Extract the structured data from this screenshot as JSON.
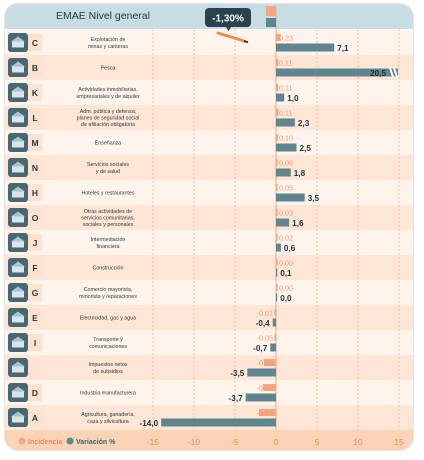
{
  "chart_data": {
    "type": "bar",
    "title": "EMAE Nivel general",
    "headline_value": "-1,30%",
    "colors": {
      "incidencia": "#f4a882",
      "variacion": "#5f8590",
      "row_light": "#fff4ec",
      "row_dark": "#fde6d6",
      "axis_band": "#fbd4b8",
      "header_band": "#c8dce3",
      "icon_bg": "#476872",
      "letter_bg": "#fde2cf",
      "letter_color": "#1f3d48",
      "headline_bg": "#29424d"
    },
    "categories": [
      {
        "code": "C",
        "label": "Explotación de\nminas y canteras",
        "incidencia": "0,23",
        "variacion": "7,1",
        "icon": "mining-icon"
      },
      {
        "code": "B",
        "label": "Pesca",
        "incidencia": "0,11",
        "variacion": "20,5",
        "icon": "fishing-icon"
      },
      {
        "code": "K",
        "label": "Actividades inmobiliarias,\nempresariales y de alquiler",
        "incidencia": "0,11",
        "variacion": "1,0",
        "icon": "real-estate-icon"
      },
      {
        "code": "L",
        "label": "Adm. pública y defensa;\nplanes de seguridad social\nde afiliación obligatoria",
        "incidencia": "0,11",
        "variacion": "2,3",
        "icon": "government-icon"
      },
      {
        "code": "M",
        "label": "Enseñanza",
        "incidencia": "0,10",
        "variacion": "2,5",
        "icon": "education-icon"
      },
      {
        "code": "N",
        "label": "Servicios sociales\ny de salud",
        "incidencia": "0,06",
        "variacion": "1,8",
        "icon": "health-icon"
      },
      {
        "code": "H",
        "label": "Hoteles y restaurantes",
        "incidencia": "0,05",
        "variacion": "3,5",
        "icon": "hotel-icon"
      },
      {
        "code": "O",
        "label": "Otras actividades de\nservicios comunitarias,\nsociales y personales",
        "incidencia": "0,03",
        "variacion": "1,6",
        "icon": "community-icon"
      },
      {
        "code": "J",
        "label": "Intermediación\nfinanciera",
        "incidencia": "0,02",
        "variacion": "0,6",
        "icon": "bank-icon"
      },
      {
        "code": "F",
        "label": "Construcción",
        "incidencia": "0,00",
        "variacion": "0,1",
        "icon": "construction-icon"
      },
      {
        "code": "G",
        "label": "Comercio mayorista,\nminorista y reparaciones",
        "incidencia": "0,00",
        "variacion": "0,0",
        "icon": "commerce-icon"
      },
      {
        "code": "E",
        "label": "Electricidad, gas y agua",
        "incidencia": "-0,01",
        "variacion": "-0,4",
        "icon": "utilities-icon"
      },
      {
        "code": "I",
        "label": "Transporte y\ncomunicaciones",
        "incidencia": "-0,05",
        "variacion": "-0,7",
        "icon": "transport-icon"
      },
      {
        "code": "",
        "label": "Impuestos netos\nde subsidios",
        "incidencia": "-0,59",
        "variacion": "-3,5",
        "icon": "taxes-icon"
      },
      {
        "code": "D",
        "label": "Industria manufacturera",
        "incidencia": "-0,63",
        "variacion": "-3,7",
        "icon": "industry-icon"
      },
      {
        "code": "A",
        "label": "Agricultura, ganadería,\ncaza y silvicultura",
        "incidencia": "-0,83",
        "variacion": "-14,0",
        "icon": "agriculture-icon"
      }
    ],
    "incidencia": [
      0.23,
      0.11,
      0.11,
      0.11,
      0.1,
      0.06,
      0.05,
      0.03,
      0.02,
      0.0,
      0.0,
      -0.01,
      -0.05,
      -0.59,
      -0.63,
      -0.83
    ],
    "variacion": [
      7.1,
      20.5,
      1.0,
      2.3,
      2.5,
      1.8,
      3.5,
      1.6,
      0.6,
      0.1,
      0.0,
      -0.4,
      -0.7,
      -3.5,
      -3.7,
      -14.0
    ],
    "headline": {
      "incidencia": -1.3,
      "variacion": 0
    },
    "x_axis": {
      "ticks": [
        -15,
        -10,
        -5,
        0,
        5,
        10,
        15
      ],
      "tick_labels": [
        "-15",
        "-10",
        "-5",
        "0",
        "5",
        "10",
        "15"
      ],
      "range": [
        -17.5,
        15.5
      ]
    },
    "axis_break": {
      "series": "variacion",
      "category": "B",
      "note": "bar for Pesca is truncated"
    },
    "legend": {
      "position": "bottom-left",
      "items": [
        {
          "name": "Incidencia",
          "color": "#f4a882"
        },
        {
          "name": "Variación %",
          "color": "#5f8590"
        }
      ]
    },
    "grid": true
  }
}
